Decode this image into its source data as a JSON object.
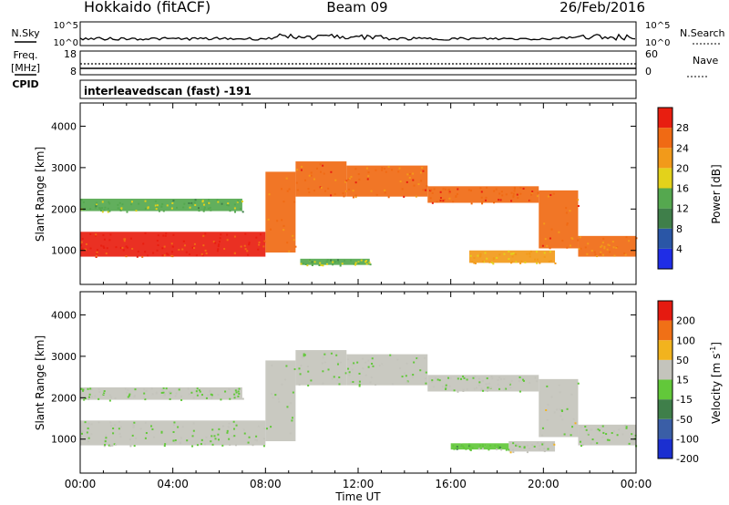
{
  "header": {
    "station": "Hokkaido (fitACF)",
    "beam": "Beam 09",
    "date": "26/Feb/2016"
  },
  "noise_panel": {
    "left_label": "N.Sky",
    "right_label": "N.Search",
    "left_ticks": [
      "10^5",
      "10^0"
    ],
    "right_ticks": [
      "10^5",
      "10^0"
    ]
  },
  "freq_panel": {
    "left_label_1": "Freq.",
    "left_label_2": "[MHz]",
    "cpid_label": "CPID",
    "right_label": "Nave",
    "left_ticks": [
      "18",
      "8"
    ],
    "right_ticks": [
      "60",
      "0"
    ]
  },
  "cpid_text": "interleavedscan (fast) -191",
  "axes": {
    "xlabel": "Time UT",
    "ylabel": "Slant Range [km]",
    "xticks": [
      "00:00",
      "04:00",
      "08:00",
      "12:00",
      "16:00",
      "20:00",
      "00:00"
    ],
    "yticks": [
      "1000",
      "2000",
      "3000",
      "4000"
    ]
  },
  "colorbars": {
    "power": {
      "label": "Power [dB]",
      "ticks": [
        "4",
        "8",
        "12",
        "16",
        "20",
        "24",
        "28"
      ],
      "colors": [
        "#1f2de6",
        "#2a56a6",
        "#3f7f4a",
        "#55a84f",
        "#e3d21b",
        "#f29a1a",
        "#f06a14",
        "#e81e10"
      ]
    },
    "velocity": {
      "label": "Velocity [m s",
      "label_sup": "-1",
      "label_end": "]",
      "ticks": [
        "200",
        "100",
        "50",
        "15",
        "-15",
        "-50",
        "-100",
        "-200"
      ],
      "colors": [
        "#1b2fd0",
        "#3a5ea6",
        "#3f7f4a",
        "#62c83a",
        "#c4c4bc",
        "#f2b31e",
        "#f07016",
        "#e51a10"
      ]
    }
  },
  "chart_data": [
    {
      "type": "heatmap",
      "title": "Power",
      "xlabel": "Time UT",
      "ylabel": "Slant Range [km]",
      "xlim": [
        0,
        24
      ],
      "ylim": [
        180,
        4560
      ],
      "colorbar_range": [
        0,
        30
      ],
      "echo_bands": [
        {
          "t0": 0.0,
          "t1": 8.0,
          "r0": 850,
          "r1": 1450,
          "value": 27
        },
        {
          "t0": 0.0,
          "t1": 7.0,
          "r0": 1950,
          "r1": 2250,
          "value": 14
        },
        {
          "t0": 8.0,
          "t1": 9.3,
          "r0": 950,
          "r1": 2900,
          "value": 23
        },
        {
          "t0": 9.3,
          "t1": 11.5,
          "r0": 2300,
          "r1": 3150,
          "value": 24
        },
        {
          "t0": 11.5,
          "t1": 15.0,
          "r0": 2300,
          "r1": 3050,
          "value": 24
        },
        {
          "t0": 15.0,
          "t1": 19.8,
          "r0": 2150,
          "r1": 2550,
          "value": 25
        },
        {
          "t0": 19.8,
          "t1": 21.5,
          "r0": 1050,
          "r1": 2450,
          "value": 24
        },
        {
          "t0": 21.5,
          "t1": 24.0,
          "r0": 850,
          "r1": 1350,
          "value": 23
        },
        {
          "t0": 16.8,
          "t1": 20.5,
          "r0": 700,
          "r1": 1000,
          "value": 19
        },
        {
          "t0": 9.5,
          "t1": 12.5,
          "r0": 650,
          "r1": 800,
          "value": 14
        }
      ]
    },
    {
      "type": "heatmap",
      "title": "Velocity",
      "xlabel": "Time UT",
      "ylabel": "Slant Range [km]",
      "xlim": [
        0,
        24
      ],
      "ylim": [
        180,
        4560
      ],
      "colorbar_range": [
        -250,
        250
      ],
      "echo_bands": [
        {
          "t0": 0.0,
          "t1": 8.0,
          "r0": 850,
          "r1": 1450,
          "value": 0
        },
        {
          "t0": 0.0,
          "t1": 7.0,
          "r0": 1950,
          "r1": 2250,
          "value": 0
        },
        {
          "t0": 8.0,
          "t1": 9.3,
          "r0": 950,
          "r1": 2900,
          "value": 0
        },
        {
          "t0": 9.3,
          "t1": 11.5,
          "r0": 2300,
          "r1": 3150,
          "value": 0
        },
        {
          "t0": 11.5,
          "t1": 15.0,
          "r0": 2300,
          "r1": 3050,
          "value": 0
        },
        {
          "t0": 15.0,
          "t1": 19.8,
          "r0": 2150,
          "r1": 2550,
          "value": 0
        },
        {
          "t0": 19.8,
          "t1": 21.5,
          "r0": 1050,
          "r1": 2450,
          "value": 25
        },
        {
          "t0": 21.5,
          "t1": 24.0,
          "r0": 850,
          "r1": 1350,
          "value": 0
        },
        {
          "t0": 18.5,
          "t1": 20.5,
          "r0": 700,
          "r1": 950,
          "value": 25
        },
        {
          "t0": 16.0,
          "t1": 18.5,
          "r0": 750,
          "r1": 900,
          "value": -30
        }
      ]
    }
  ]
}
